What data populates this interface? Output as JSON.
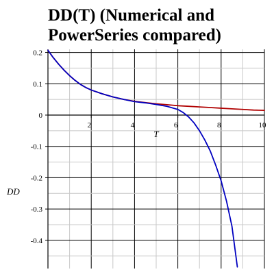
{
  "chart_data": {
    "type": "line",
    "title_lines": [
      "DD(T) (Numerical and",
      "PowerSeries compared)"
    ],
    "xlabel": "T",
    "ylabel": "DD",
    "xlim": [
      0,
      10
    ],
    "ylim": [
      -0.49,
      0.21
    ],
    "x_ticks": [
      2,
      4,
      6,
      8,
      10
    ],
    "y_ticks": [
      0.2,
      0.1,
      0,
      -0.1,
      -0.2,
      -0.3,
      -0.4
    ],
    "y_tick_labels": [
      "0.2",
      "0.1",
      "0",
      "-0.1",
      "-0.2",
      "-0.3",
      "-0.4"
    ],
    "grid": true,
    "series": [
      {
        "color": "#b00000",
        "x": [
          0,
          0.25,
          0.5,
          0.75,
          1,
          1.25,
          1.5,
          1.75,
          2,
          2.5,
          3,
          3.5,
          4,
          4.5,
          5,
          5.5,
          6,
          6.5,
          7,
          7.5,
          8,
          8.5,
          9,
          9.5,
          10
        ],
        "y": [
          0.207,
          0.183,
          0.162,
          0.143,
          0.126,
          0.111,
          0.098,
          0.088,
          0.08,
          0.068,
          0.058,
          0.05,
          0.044,
          0.04,
          0.036,
          0.033,
          0.03,
          0.028,
          0.026,
          0.024,
          0.022,
          0.02,
          0.018,
          0.016,
          0.015
        ]
      },
      {
        "color": "#0000c0",
        "x": [
          0,
          0.25,
          0.5,
          0.75,
          1,
          1.25,
          1.5,
          1.75,
          2,
          2.5,
          3,
          3.5,
          4,
          4.5,
          5,
          5.5,
          6,
          6.25,
          6.5,
          6.75,
          7,
          7.25,
          7.5,
          7.75,
          8,
          8.25,
          8.5,
          8.75
        ],
        "y": [
          0.207,
          0.183,
          0.162,
          0.143,
          0.126,
          0.111,
          0.098,
          0.088,
          0.08,
          0.068,
          0.058,
          0.05,
          0.043,
          0.039,
          0.034,
          0.028,
          0.018,
          0.008,
          -0.006,
          -0.025,
          -0.05,
          -0.08,
          -0.115,
          -0.16,
          -0.21,
          -0.275,
          -0.355,
          -0.485
        ]
      }
    ]
  }
}
